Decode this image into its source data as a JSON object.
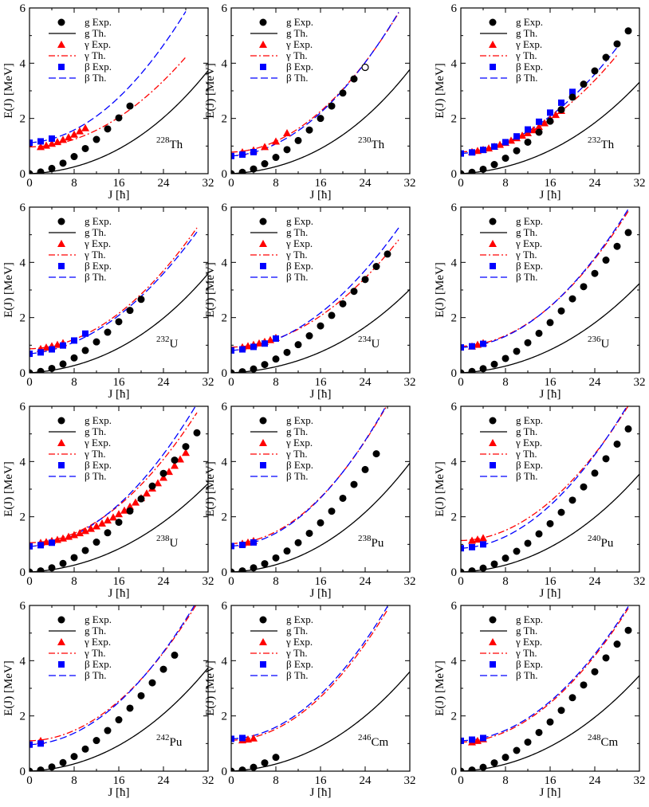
{
  "figure": {
    "x_axis_label": "J [ħ]",
    "y_axis_label": "E(J) [MeV]",
    "x_ticks": [
      0,
      8,
      16,
      24,
      32
    ],
    "y_ticks": [
      0,
      2,
      4,
      6
    ],
    "legend": [
      "g Exp.",
      "g Th.",
      "γ Exp.",
      "γ Th.",
      "β Exp.",
      "β Th."
    ]
  },
  "colors": {
    "ground": "#000000",
    "gamma": "#ff0000",
    "beta": "#0000ff"
  },
  "chart_data": [
    {
      "type": "scatter",
      "title_mass": "228",
      "title_element": "Th",
      "xlim": [
        0,
        32
      ],
      "ylim": [
        0,
        6
      ],
      "g": {
        "x": [
          0,
          2,
          4,
          6,
          8,
          10,
          12,
          14,
          16,
          18
        ],
        "y": [
          0,
          0.06,
          0.19,
          0.38,
          0.62,
          0.91,
          1.24,
          1.62,
          2.02,
          2.45
        ]
      },
      "g_max": 32,
      "g_th": {
        "a": 0.009,
        "b": 0.0025,
        "c": 2.7e-05
      },
      "gamma": {
        "x": [
          2,
          3,
          4,
          5,
          6,
          7,
          8,
          9,
          10
        ],
        "y": [
          0.97,
          1.02,
          1.09,
          1.15,
          1.23,
          1.32,
          1.42,
          1.54,
          1.65
        ]
      },
      "gamma_max": 28,
      "gamma_th": {
        "e0": 0.97,
        "a": 0.0013,
        "b": 0.0041
      },
      "beta": {
        "x": [
          0,
          2,
          4
        ],
        "y": [
          1.12,
          1.17,
          1.27
        ]
      },
      "beta_max": 28,
      "beta_th": {
        "e0": 1.12,
        "a": 0.013,
        "b": 0.0056
      },
      "th_open": []
    },
    {
      "type": "scatter",
      "title_mass": "230",
      "title_element": "Th",
      "xlim": [
        0,
        32
      ],
      "ylim": [
        0,
        6
      ],
      "g": {
        "x": [
          0,
          2,
          4,
          6,
          8,
          10,
          12,
          14,
          16,
          18,
          20,
          22,
          24
        ],
        "y": [
          0,
          0.05,
          0.17,
          0.36,
          0.59,
          0.87,
          1.2,
          1.58,
          2.0,
          2.45,
          2.92,
          3.43,
          3.85
        ]
      },
      "g_max": 32,
      "g_th": {
        "a": 0.0115,
        "b": 0.0023,
        "c": 3.2e-05
      },
      "gamma": {
        "x": [
          2,
          4,
          6,
          8,
          10
        ],
        "y": [
          0.78,
          0.85,
          0.97,
          1.17,
          1.47
        ]
      },
      "gamma_max": 30,
      "gamma_th": {
        "e0": 0.78,
        "a": 0.006,
        "b": 0.0054
      },
      "beta": {
        "x": [
          0,
          2,
          4
        ],
        "y": [
          0.64,
          0.69,
          0.78
        ]
      },
      "beta_max": 30,
      "beta_th": {
        "e0": 0.64,
        "a": 0.0115,
        "b": 0.0054
      },
      "th_open": [
        {
          "x": 24,
          "y": 3.85
        }
      ]
    },
    {
      "type": "scatter",
      "title_mass": "232",
      "title_element": "Th",
      "xlim": [
        0,
        32
      ],
      "ylim": [
        0,
        6
      ],
      "g": {
        "x": [
          0,
          2,
          4,
          6,
          8,
          10,
          12,
          14,
          16,
          18,
          20,
          22,
          24,
          26,
          28,
          30
        ],
        "y": [
          0,
          0.05,
          0.16,
          0.33,
          0.56,
          0.83,
          1.14,
          1.5,
          1.9,
          2.32,
          2.77,
          3.24,
          3.72,
          4.21,
          4.7,
          5.17
        ]
      },
      "g_max": 32,
      "g_th": {
        "a": 0.0125,
        "b": 0.0022,
        "c": 2e-05
      },
      "gamma": {
        "x": [
          2,
          3,
          4,
          5,
          6,
          7,
          8,
          9,
          10,
          11,
          12,
          13,
          14,
          15,
          16,
          17,
          18
        ],
        "y": [
          0.79,
          0.83,
          0.87,
          0.92,
          0.98,
          1.05,
          1.12,
          1.2,
          1.29,
          1.38,
          1.47,
          1.58,
          1.7,
          1.83,
          1.98,
          2.13,
          2.28
        ]
      },
      "gamma_max": 28,
      "gamma_th": {
        "e0": 0.79,
        "a": 0.0048,
        "b": 0.0043
      },
      "beta": {
        "x": [
          0,
          2,
          4,
          6,
          8,
          10,
          12,
          14,
          16,
          18,
          20
        ],
        "y": [
          0.73,
          0.77,
          0.86,
          0.98,
          1.14,
          1.35,
          1.6,
          1.88,
          2.21,
          2.57,
          2.96
        ]
      },
      "beta_max": 28,
      "beta_th": {
        "e0": 0.73,
        "a": 0.014,
        "b": 0.0044
      },
      "th_open": []
    },
    {
      "type": "scatter",
      "title_mass": "232",
      "title_element": "U",
      "xlim": [
        0,
        32
      ],
      "ylim": [
        0,
        6
      ],
      "g": {
        "x": [
          0,
          2,
          4,
          6,
          8,
          10,
          12,
          14,
          16,
          18,
          20
        ],
        "y": [
          0,
          0.05,
          0.16,
          0.32,
          0.54,
          0.81,
          1.12,
          1.47,
          1.85,
          2.26,
          2.66
        ]
      },
      "g_max": 32,
      "g_th": {
        "a": 0.013,
        "b": 0.0023,
        "c": 2.5e-05
      },
      "gamma": {
        "x": [
          2,
          3,
          4,
          5,
          6
        ],
        "y": [
          0.87,
          0.92,
          0.97,
          1.02,
          1.08
        ]
      },
      "gamma_max": 30,
      "gamma_th": {
        "e0": 0.87,
        "a": 0.005,
        "b": 0.0047
      },
      "beta": {
        "x": [
          0,
          2,
          4,
          6,
          8,
          10
        ],
        "y": [
          0.69,
          0.74,
          0.85,
          0.99,
          1.17,
          1.42
        ]
      },
      "beta_max": 30,
      "beta_th": {
        "e0": 0.69,
        "a": 0.018,
        "b": 0.0043
      },
      "th_open": []
    },
    {
      "type": "scatter",
      "title_mass": "234",
      "title_element": "U",
      "xlim": [
        0,
        32
      ],
      "ylim": [
        0,
        6
      ],
      "g": {
        "x": [
          0,
          2,
          4,
          6,
          8,
          10,
          12,
          14,
          16,
          18,
          20,
          22,
          24,
          26,
          28
        ],
        "y": [
          0,
          0.04,
          0.14,
          0.3,
          0.5,
          0.74,
          1.02,
          1.34,
          1.7,
          2.08,
          2.5,
          2.95,
          3.38,
          3.85,
          4.3
        ]
      },
      "g_max": 32,
      "g_th": {
        "a": 0.011,
        "b": 0.0019,
        "c": 2.2e-05
      },
      "gamma": {
        "x": [
          2,
          3,
          4,
          5,
          6,
          7,
          8
        ],
        "y": [
          0.93,
          0.97,
          1.02,
          1.07,
          1.13,
          1.19,
          1.27
        ]
      },
      "gamma_max": 30,
      "gamma_th": {
        "e0": 0.93,
        "a": 0.0035,
        "b": 0.0042
      },
      "beta": {
        "x": [
          0,
          2,
          4,
          6,
          8
        ],
        "y": [
          0.81,
          0.85,
          0.94,
          1.06,
          1.24
        ]
      },
      "beta_max": 30,
      "beta_th": {
        "e0": 0.81,
        "a": 0.013,
        "b": 0.0045
      },
      "th_open": []
    },
    {
      "type": "scatter",
      "title_mass": "236",
      "title_element": "U",
      "xlim": [
        0,
        32
      ],
      "ylim": [
        0,
        6
      ],
      "g": {
        "x": [
          0,
          2,
          4,
          6,
          8,
          10,
          12,
          14,
          16,
          18,
          20,
          22,
          24,
          26,
          28,
          30
        ],
        "y": [
          0,
          0.05,
          0.15,
          0.31,
          0.52,
          0.78,
          1.09,
          1.43,
          1.82,
          2.24,
          2.68,
          3.12,
          3.6,
          4.08,
          4.58,
          5.08
        ]
      },
      "g_max": 32,
      "g_th": {
        "a": 0.011,
        "b": 0.0023,
        "c": 1.6e-05
      },
      "gamma": {
        "x": [
          2,
          3,
          4
        ],
        "y": [
          0.96,
          1.02,
          1.08
        ]
      },
      "gamma_max": 30,
      "gamma_th": {
        "e0": 0.96,
        "a": 0.007,
        "b": 0.0052
      },
      "beta": {
        "x": [
          0,
          2,
          4
        ],
        "y": [
          0.92,
          0.96,
          1.05
        ]
      },
      "beta_max": 30,
      "beta_th": {
        "e0": 0.92,
        "a": 0.008,
        "b": 0.0053
      },
      "th_open": []
    },
    {
      "type": "scatter",
      "title_mass": "238",
      "title_element": "U",
      "xlim": [
        0,
        32
      ],
      "ylim": [
        0,
        6
      ],
      "g": {
        "x": [
          0,
          2,
          4,
          6,
          8,
          10,
          12,
          14,
          16,
          18,
          20,
          22,
          24,
          26,
          28,
          30
        ],
        "y": [
          0,
          0.04,
          0.15,
          0.31,
          0.52,
          0.78,
          1.08,
          1.42,
          1.8,
          2.21,
          2.65,
          3.11,
          3.57,
          4.05,
          4.54,
          5.04
        ]
      },
      "g_max": 32,
      "g_th": {
        "a": 0.011,
        "b": 0.0024,
        "c": 1.2e-05
      },
      "gamma": {
        "x": [
          2,
          3,
          4,
          5,
          6,
          7,
          8,
          9,
          10,
          11,
          12,
          13,
          14,
          15,
          16,
          17,
          18,
          19,
          20,
          21,
          22,
          23,
          24,
          25,
          26,
          27,
          28
        ],
        "y": [
          1.06,
          1.09,
          1.13,
          1.17,
          1.22,
          1.28,
          1.34,
          1.41,
          1.49,
          1.57,
          1.66,
          1.76,
          1.87,
          1.98,
          2.1,
          2.23,
          2.37,
          2.52,
          2.68,
          2.85,
          3.03,
          3.22,
          3.42,
          3.63,
          3.85,
          4.08,
          4.32
        ]
      },
      "gamma_max": 30,
      "gamma_th": {
        "e0": 1.06,
        "a": 0.001,
        "b": 0.0052
      },
      "beta": {
        "x": [
          0,
          2,
          4
        ],
        "y": [
          0.93,
          0.97,
          1.06
        ]
      },
      "beta_max": 30,
      "beta_th": {
        "e0": 0.93,
        "a": 0.007,
        "b": 0.0055
      },
      "th_open": []
    },
    {
      "type": "scatter",
      "title_mass": "238",
      "title_element": "Pu",
      "xlim": [
        0,
        32
      ],
      "ylim": [
        0,
        6
      ],
      "g": {
        "x": [
          0,
          2,
          4,
          6,
          8,
          10,
          12,
          14,
          16,
          18,
          20,
          22,
          24,
          26
        ],
        "y": [
          0,
          0.04,
          0.15,
          0.3,
          0.51,
          0.76,
          1.06,
          1.4,
          1.78,
          2.2,
          2.67,
          3.17,
          3.71,
          4.28
        ]
      },
      "g_max": 32,
      "g_th": {
        "a": 0.009,
        "b": 0.0028,
        "c": 2.4e-05
      },
      "gamma": {
        "x": [
          2,
          3,
          4
        ],
        "y": [
          1.03,
          1.07,
          1.13
        ]
      },
      "gamma_max": 28,
      "gamma_th": {
        "e0": 1.03,
        "a": 0.0035,
        "b": 0.0063
      },
      "beta": {
        "x": [
          0,
          2,
          4
        ],
        "y": [
          0.94,
          0.98,
          1.07
        ]
      },
      "beta_max": 28,
      "beta_th": {
        "e0": 0.94,
        "a": 0.008,
        "b": 0.0063
      },
      "th_open": []
    },
    {
      "type": "scatter",
      "title_mass": "240",
      "title_element": "Pu",
      "xlim": [
        0,
        32
      ],
      "ylim": [
        0,
        6
      ],
      "g": {
        "x": [
          0,
          2,
          4,
          6,
          8,
          10,
          12,
          14,
          16,
          18,
          20,
          22,
          24,
          26,
          28,
          30
        ],
        "y": [
          0,
          0.04,
          0.14,
          0.29,
          0.5,
          0.75,
          1.04,
          1.38,
          1.75,
          2.16,
          2.6,
          3.08,
          3.58,
          4.1,
          4.63,
          5.18
        ]
      },
      "g_max": 32,
      "g_th": {
        "a": 0.009,
        "b": 0.0027,
        "c": 1.5e-05
      },
      "gamma": {
        "x": [
          2,
          3,
          4
        ],
        "y": [
          1.14,
          1.18,
          1.23
        ]
      },
      "gamma_max": 30,
      "gamma_th": {
        "e0": 1.14,
        "a": 0.0035,
        "b": 0.0053
      },
      "beta": {
        "x": [
          0,
          2,
          4
        ],
        "y": [
          0.86,
          0.9,
          1.0
        ]
      },
      "beta_max": 30,
      "beta_th": {
        "e0": 0.86,
        "a": 0.009,
        "b": 0.0055
      },
      "th_open": []
    },
    {
      "type": "scatter",
      "title_mass": "242",
      "title_element": "Pu",
      "xlim": [
        0,
        32
      ],
      "ylim": [
        0,
        6
      ],
      "g": {
        "x": [
          0,
          2,
          4,
          6,
          8,
          10,
          12,
          14,
          16,
          18,
          20,
          22,
          24,
          26
        ],
        "y": [
          0,
          0.04,
          0.15,
          0.31,
          0.53,
          0.8,
          1.11,
          1.47,
          1.86,
          2.28,
          2.73,
          3.2,
          3.69,
          4.2
        ]
      },
      "g_max": 32,
      "g_th": {
        "a": 0.01,
        "b": 0.0027,
        "c": 2e-05
      },
      "gamma": {
        "x": [
          2
        ],
        "y": [
          1.1
        ]
      },
      "gamma_max": 30,
      "gamma_th": {
        "e0": 1.1,
        "a": 0.0035,
        "b": 0.0054
      },
      "beta": {
        "x": [
          0,
          2
        ],
        "y": [
          0.96,
          1.0
        ]
      },
      "beta_max": 30,
      "beta_th": {
        "e0": 0.96,
        "a": 0.008,
        "b": 0.0055
      },
      "th_open": []
    },
    {
      "type": "scatter",
      "title_mass": "246",
      "title_element": "Cm",
      "xlim": [
        0,
        32
      ],
      "ylim": [
        0,
        6
      ],
      "g": {
        "x": [
          0,
          2,
          4,
          6,
          8
        ],
        "y": [
          0,
          0.04,
          0.14,
          0.3,
          0.5
        ]
      },
      "g_max": 32,
      "g_th": {
        "a": 0.011,
        "b": 0.0025,
        "c": 2.1e-05
      },
      "gamma": {
        "x": [
          2,
          3,
          4
        ],
        "y": [
          1.12,
          1.15,
          1.19
        ]
      },
      "gamma_max": 28,
      "gamma_th": {
        "e0": 1.12,
        "a": 0.0035,
        "b": 0.0059
      },
      "beta": {
        "x": [
          0,
          2
        ],
        "y": [
          1.17,
          1.2
        ]
      },
      "beta_max": 28,
      "beta_th": {
        "e0": 1.17,
        "a": 0.006,
        "b": 0.0059
      },
      "th_open": []
    },
    {
      "type": "scatter",
      "title_mass": "248",
      "title_element": "Cm",
      "xlim": [
        0,
        32
      ],
      "ylim": [
        0,
        6
      ],
      "g": {
        "x": [
          0,
          2,
          4,
          6,
          8,
          10,
          12,
          14,
          16,
          18,
          20,
          22,
          24,
          26,
          28,
          30
        ],
        "y": [
          0,
          0.04,
          0.14,
          0.3,
          0.5,
          0.75,
          1.05,
          1.4,
          1.78,
          2.2,
          2.66,
          3.12,
          3.6,
          4.1,
          4.6,
          5.1
        ]
      },
      "g_max": 32,
      "g_th": {
        "a": 0.0095,
        "b": 0.0027,
        "c": 1.2e-05
      },
      "gamma": {
        "x": [
          2,
          3,
          4
        ],
        "y": [
          1.05,
          1.1,
          1.16
        ]
      },
      "gamma_max": 30,
      "gamma_th": {
        "e0": 1.05,
        "a": 0.0055,
        "b": 0.0052
      },
      "beta": {
        "x": [
          0,
          2,
          4
        ],
        "y": [
          1.1,
          1.14,
          1.2
        ]
      },
      "beta_max": 30,
      "beta_th": {
        "e0": 1.1,
        "a": 0.006,
        "b": 0.0052
      },
      "th_open": []
    }
  ]
}
